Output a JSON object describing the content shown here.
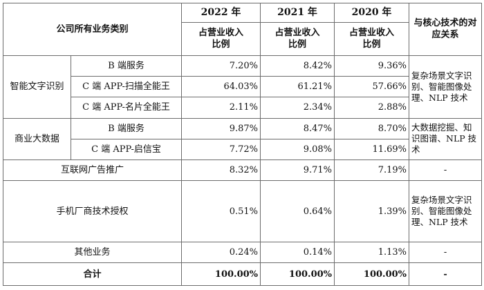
{
  "header": {
    "category": "公司所有业务类别",
    "years": [
      "2022 年",
      "2021 年",
      "2020 年"
    ],
    "share_label_line1": "占营业收入",
    "share_label_line2": "比例",
    "relation": "与核心技术的对应关系"
  },
  "groups": {
    "ocr": {
      "name": "智能文字识别",
      "relation": "复杂场景文字识别、智能图像处理、NLP 技术",
      "rows": [
        {
          "name": "B 端服务",
          "values": [
            "7.20%",
            "8.42%",
            "9.36%"
          ]
        },
        {
          "name": "C 端 APP-扫描全能王",
          "values": [
            "64.03%",
            "61.21%",
            "57.66%"
          ]
        },
        {
          "name": "C 端 APP-名片全能王",
          "values": [
            "2.11%",
            "2.34%",
            "2.88%"
          ]
        }
      ]
    },
    "bigdata": {
      "name": "商业大数据",
      "relation": "大数据挖掘、知识图谱、NLP 技术",
      "rows": [
        {
          "name": "B 端服务",
          "values": [
            "9.87%",
            "8.47%",
            "8.70%"
          ]
        },
        {
          "name": "C 端 APP-启信宝",
          "values": [
            "7.72%",
            "9.08%",
            "11.69%"
          ]
        }
      ]
    }
  },
  "ads": {
    "name": "互联网广告推广",
    "values": [
      "8.32%",
      "9.71%",
      "7.19%"
    ],
    "relation": "-"
  },
  "licensing": {
    "name": "手机厂商技术授权",
    "values": [
      "0.51%",
      "0.64%",
      "1.39%"
    ],
    "relation": "复杂场景文字识别、智能图像处理、NLP 技术"
  },
  "other": {
    "name": "其他业务",
    "values": [
      "0.24%",
      "0.14%",
      "1.13%"
    ],
    "relation": "-"
  },
  "total": {
    "name": "合计",
    "values": [
      "100.00%",
      "100.00%",
      "100.00%"
    ],
    "relation": "-"
  }
}
